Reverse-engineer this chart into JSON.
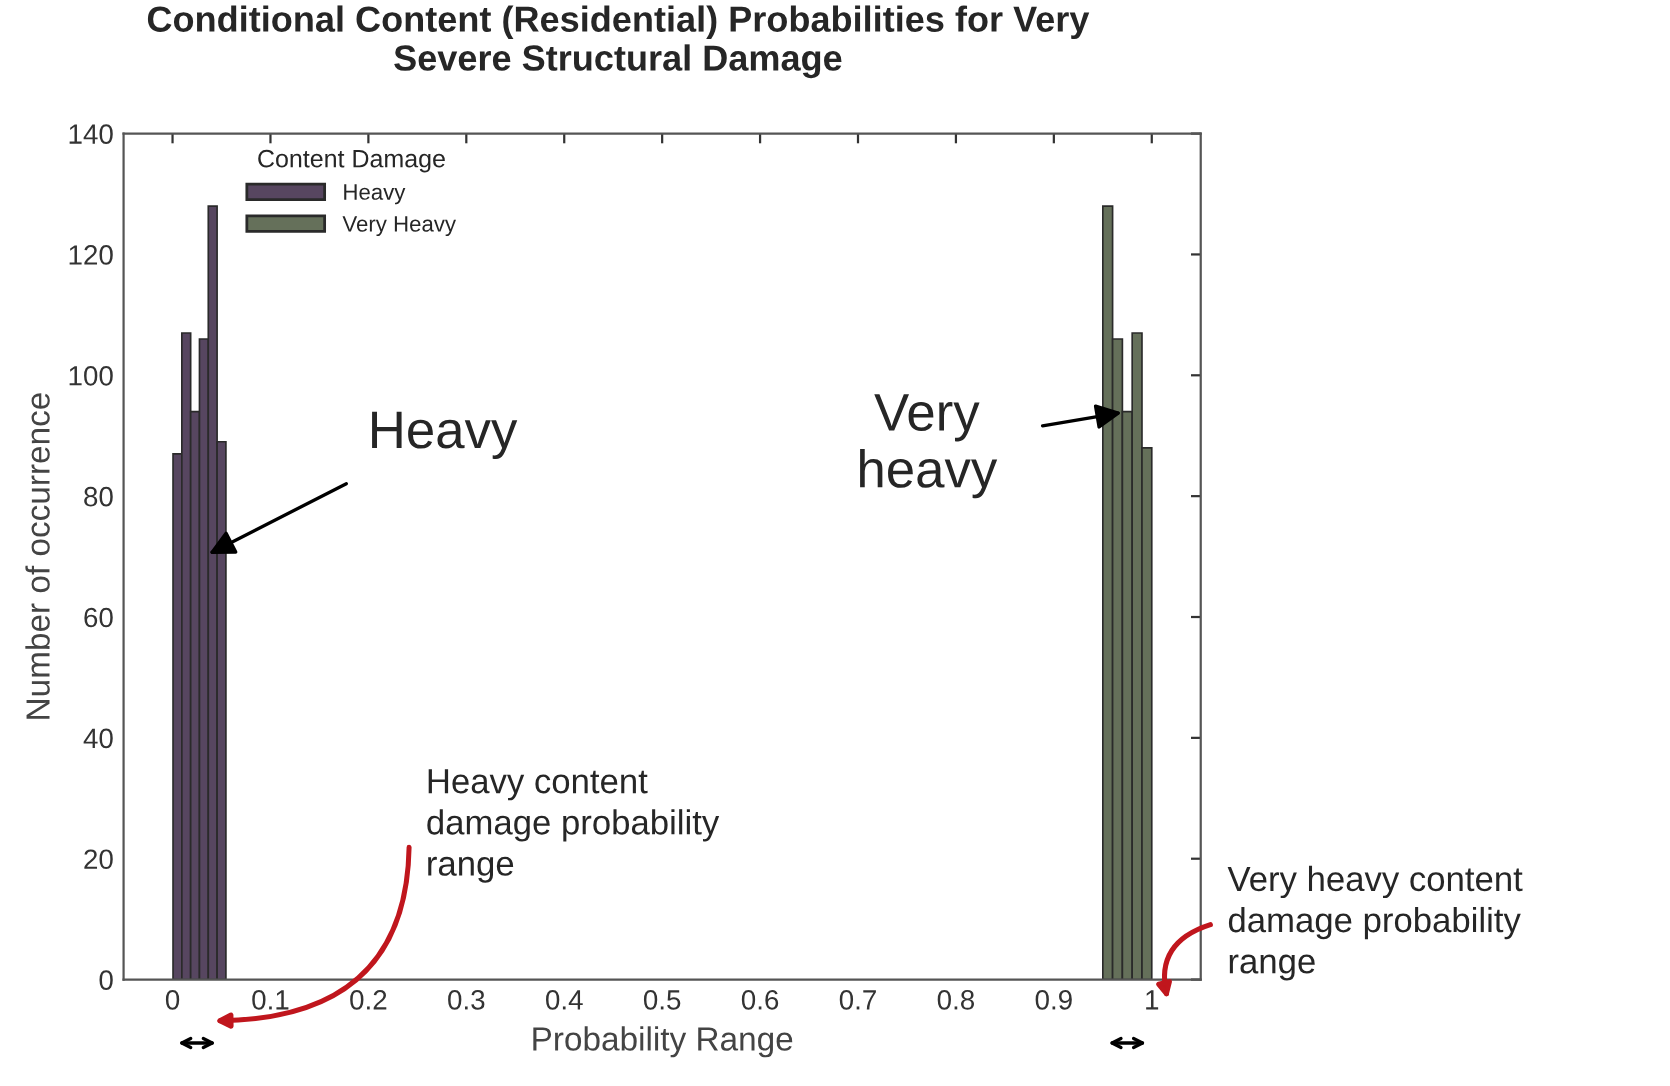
{
  "chart_data": {
    "type": "bar",
    "title": "Conditional Content (Residential) Probabilities for Very\nSevere Structural Damage",
    "xlabel": "Probability Range",
    "ylabel": "Number of occurrence",
    "legend_title": "Content Damage",
    "series": [
      {
        "name": "Heavy",
        "color": "#574660",
        "x": [
          0.005,
          0.014,
          0.023,
          0.032,
          0.041,
          0.05
        ],
        "values": [
          87,
          107,
          94,
          106,
          128,
          89
        ]
      },
      {
        "name": "Very Heavy",
        "color": "#65705a",
        "x": [
          0.955,
          0.965,
          0.975,
          0.985,
          0.995
        ],
        "values": [
          128,
          106,
          94,
          107,
          88
        ]
      }
    ],
    "xlim": [
      -0.05,
      1.05
    ],
    "ylim": [
      0,
      140
    ],
    "xticks": [
      0,
      0.1,
      0.2,
      0.3,
      0.4,
      0.5,
      0.6,
      0.7,
      0.8,
      0.9,
      1
    ],
    "yticks": [
      0,
      20,
      40,
      60,
      80,
      100,
      120,
      140
    ],
    "grid": false,
    "legend": "top left",
    "annotations": [
      {
        "text": "Heavy",
        "x": 0.032,
        "y": 70
      },
      {
        "text": "Very\nheavy",
        "x": 0.975,
        "y": 94
      },
      "Heavy content\ndamage probability\nrange",
      "Very heavy content\ndamage probability\nrange"
    ]
  }
}
